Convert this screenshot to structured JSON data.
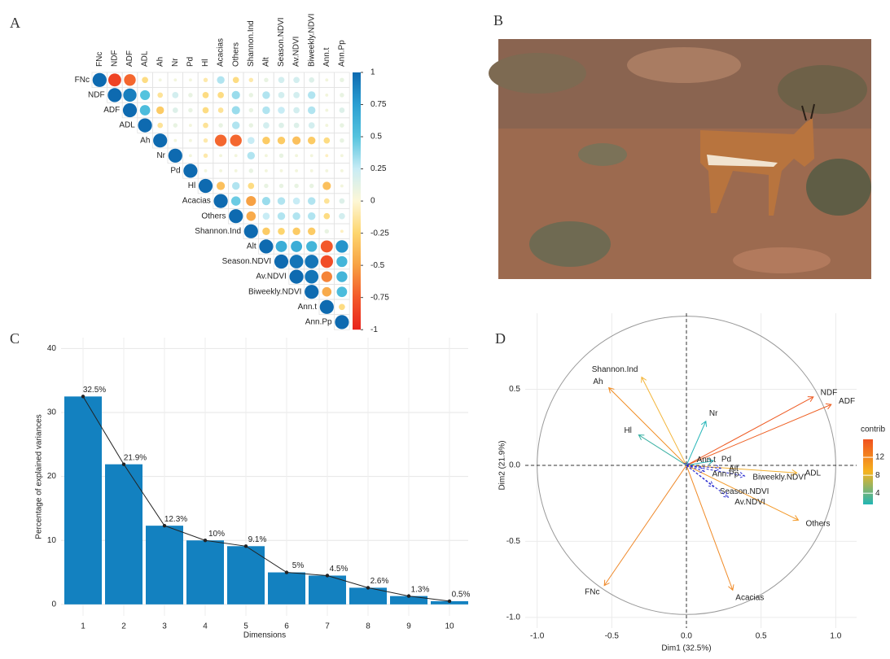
{
  "chart_data": [
    {
      "type": "correlation",
      "panel": "A",
      "variables": [
        "FNc",
        "NDF",
        "ADF",
        "ADL",
        "Ah",
        "Nr",
        "Pd",
        "Hl",
        "Acacias",
        "Others",
        "Shannon.Ind",
        "Alt",
        "Season.NDVI",
        "Av.NDVI",
        "Biweekly.NDVI",
        "Ann.t",
        "Ann.Pp"
      ],
      "values": [
        [
          1,
          -0.85,
          -0.7,
          -0.2,
          0.05,
          0.05,
          0.05,
          -0.1,
          0.3,
          -0.2,
          -0.1,
          0.1,
          0.2,
          0.2,
          0.15,
          0.05,
          0.1
        ],
        [
          1,
          0.9,
          0.5,
          -0.15,
          0.2,
          0.1,
          -0.2,
          -0.2,
          0.35,
          0.1,
          0.3,
          0.2,
          0.2,
          0.3,
          0.05,
          0.1
        ],
        [
          1,
          0.55,
          -0.3,
          0.15,
          0.1,
          -0.2,
          -0.15,
          0.35,
          0.1,
          0.3,
          0.25,
          0.2,
          0.3,
          0.05,
          0.15
        ],
        [
          1,
          -0.15,
          0.1,
          0.05,
          -0.15,
          0.1,
          0.3,
          0.1,
          0.2,
          0.15,
          0.15,
          0.2,
          0.05,
          0.1
        ],
        [
          1,
          0.05,
          0.05,
          -0.1,
          -0.7,
          -0.7,
          0.25,
          -0.3,
          -0.3,
          -0.35,
          -0.3,
          -0.2,
          0.1
        ],
        [
          1,
          0.05,
          -0.1,
          0.05,
          0.05,
          0.3,
          0.05,
          0.1,
          0.05,
          0.05,
          -0.05,
          0.05
        ],
        [
          1,
          0.05,
          0.05,
          0.05,
          0.1,
          0.05,
          0.05,
          0.05,
          0.05,
          0.05,
          0.05
        ],
        [
          1,
          -0.35,
          0.3,
          -0.2,
          0.1,
          0.1,
          0.1,
          0.1,
          -0.35,
          0.05
        ],
        [
          1,
          0.45,
          -0.5,
          0.35,
          0.3,
          0.25,
          0.3,
          -0.15,
          0.15
        ],
        [
          1,
          -0.45,
          0.25,
          0.3,
          0.3,
          0.3,
          -0.2,
          0.2
        ],
        [
          1,
          -0.3,
          -0.25,
          -0.3,
          -0.3,
          0.1,
          -0.05
        ],
        [
          1,
          0.65,
          0.65,
          0.6,
          -0.75,
          0.8
        ],
        [
          1,
          0.95,
          0.95,
          -0.8,
          0.6
        ],
        [
          1,
          0.95,
          -0.6,
          0.6
        ],
        [
          1,
          -0.45,
          0.55
        ],
        [
          1,
          -0.2
        ],
        [
          1
        ]
      ],
      "clim": [
        -1,
        1
      ],
      "colorscale": [
        "#e8231c",
        "#f3582a",
        "#f7a143",
        "#fdd56e",
        "#fdf7d6",
        "#c8ecf5",
        "#55c3de",
        "#2a9fd2",
        "#0e6ab0"
      ],
      "colorbar_ticks": [
        1,
        0.75,
        0.5,
        0.25,
        0,
        -0.25,
        -0.5,
        -0.75,
        -1
      ]
    },
    {
      "type": "bar",
      "panel": "C",
      "categories": [
        "1",
        "2",
        "3",
        "4",
        "5",
        "6",
        "7",
        "8",
        "9",
        "10"
      ],
      "values": [
        32.5,
        21.9,
        12.3,
        10,
        9.1,
        5,
        4.5,
        2.6,
        1.3,
        0.5
      ],
      "value_labels": [
        "32.5%",
        "21.9%",
        "12.3%",
        "10%",
        "9.1%",
        "5%",
        "4.5%",
        "2.6%",
        "1.3%",
        "0.5%"
      ],
      "color": "#1381c0",
      "line_color": "#222222",
      "ylim": [
        -1.8,
        41.7
      ],
      "yticks": [
        0,
        10,
        20,
        30,
        40
      ],
      "xlabel": "Dimensions",
      "ylabel": "Percentage of explained variances",
      "grid": true
    },
    {
      "type": "pca",
      "panel": "D",
      "variables": [
        {
          "name": "Ah",
          "x": -0.52,
          "y": 0.51,
          "color": "#f08a1e"
        },
        {
          "name": "Shannon.Ind",
          "x": -0.3,
          "y": 0.58,
          "color": "#f3b53a"
        },
        {
          "name": "Hl",
          "x": -0.32,
          "y": 0.2,
          "color": "#3bb1a4"
        },
        {
          "name": "Nr",
          "x": 0.13,
          "y": 0.29,
          "color": "#28b6b9"
        },
        {
          "name": "Pd",
          "x": 0.18,
          "y": 0.03,
          "color": "#28b6b9"
        },
        {
          "name": "NDF",
          "x": 0.85,
          "y": 0.45,
          "color": "#ee5a22"
        },
        {
          "name": "ADF",
          "x": 0.97,
          "y": 0.4,
          "color": "#ee5f22"
        },
        {
          "name": "ADL",
          "x": 0.74,
          "y": -0.05,
          "color": "#f2b031"
        },
        {
          "name": "Others",
          "x": 0.75,
          "y": -0.36,
          "color": "#f39a2a"
        },
        {
          "name": "Acacias",
          "x": 0.31,
          "y": -0.82,
          "color": "#f08a26"
        },
        {
          "name": "FNc",
          "x": -0.55,
          "y": -0.79,
          "color": "#ef8a2c"
        },
        {
          "name": "Alt",
          "x": 0.23,
          "y": -0.02,
          "color": "#2c2fd0"
        },
        {
          "name": "Biweekly.NDVI",
          "x": 0.39,
          "y": -0.07,
          "color": "#2c2fd0"
        },
        {
          "name": "Ann.Pp",
          "x": 0.12,
          "y": -0.04,
          "color": "#2c2fd0"
        },
        {
          "name": "Season.NDVI",
          "x": 0.18,
          "y": -0.14,
          "color": "#2c2fd0"
        },
        {
          "name": "Av.NDVI",
          "x": 0.28,
          "y": -0.21,
          "color": "#2c2fd0"
        },
        {
          "name": "Ann.t",
          "x": 0.02,
          "y": 0.01,
          "color": "#2c2fd0"
        }
      ],
      "xlim": [
        -1.08,
        1.14
      ],
      "ylim": [
        -1.07,
        1.0
      ],
      "xticks": [
        {
          "value": -1,
          "label": "-1.0"
        },
        {
          "value": -0.5,
          "label": "-0.5"
        },
        {
          "value": 0,
          "label": "0.0"
        },
        {
          "value": 0.5,
          "label": "0.5"
        },
        {
          "value": 1,
          "label": "1.0"
        }
      ],
      "yticks": [
        {
          "value": -1,
          "label": "-1.0"
        },
        {
          "value": -0.5,
          "label": "-0.5"
        },
        {
          "value": 0,
          "label": "0.0"
        },
        {
          "value": 0.5,
          "label": "0.5"
        }
      ],
      "xlabel": "Dim1 (32.5%)",
      "ylabel": "Dim2 (21.9%)",
      "legend_title": "contrib",
      "legend_ticks": [
        4,
        8,
        12
      ],
      "legend_range": [
        1.5,
        16
      ],
      "legend_colors": [
        "#21b5b4",
        "#f5b31f",
        "#f0521f"
      ]
    }
  ],
  "photo": {
    "panel": "B"
  }
}
